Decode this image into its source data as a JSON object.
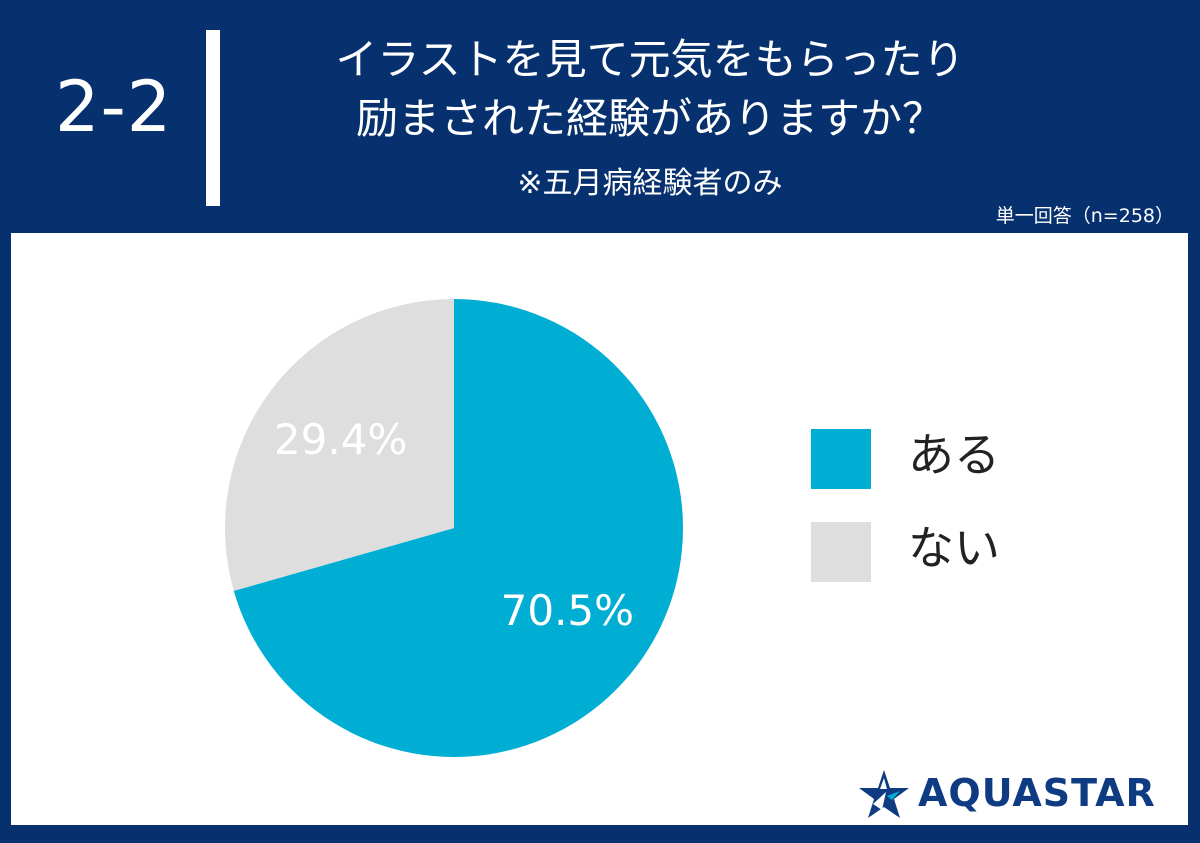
{
  "header": {
    "question_number": "2-2",
    "title_line_1": "イラストを見て元気をもらったり",
    "title_line_2": "励まされた経験がありますか？",
    "subtitle": "※五月病経験者のみ",
    "sample_note": "単一回答（n=258）"
  },
  "chart_data": {
    "type": "pie",
    "series": [
      {
        "name": "ある",
        "value": 70.5,
        "label": "70.5%",
        "color": "#00aed4"
      },
      {
        "name": "ない",
        "value": 29.4,
        "label": "29.4%",
        "color": "#dedede"
      }
    ],
    "legend": "right",
    "start": "top",
    "direction": "clockwise"
  },
  "colors": {
    "background": "#07306e",
    "panel": "#ffffff",
    "brand_text": "#0f3b82"
  },
  "brand": {
    "name": "AQUASTAR",
    "icon": "star-logo-icon"
  }
}
